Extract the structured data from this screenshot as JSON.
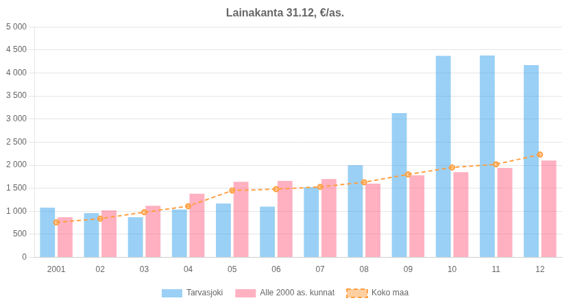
{
  "chart_data": {
    "type": "bar",
    "title": "Lainakanta 31.12, €/as.",
    "categories": [
      "2001",
      "02",
      "03",
      "04",
      "05",
      "06",
      "07",
      "08",
      "09",
      "10",
      "11",
      "12"
    ],
    "series": [
      {
        "name": "Tarvasjoki",
        "type": "bar",
        "values": [
          1080,
          960,
          870,
          1040,
          1170,
          1100,
          1520,
          2000,
          3130,
          4370,
          4380,
          4170
        ]
      },
      {
        "name": "Alle 2000 as. kunnat",
        "type": "bar",
        "values": [
          870,
          1020,
          1120,
          1380,
          1640,
          1660,
          1700,
          1600,
          1780,
          1850,
          1940,
          2100
        ]
      },
      {
        "name": "Koko maa",
        "type": "line",
        "marker": "circle",
        "line_style": "dashed",
        "values": [
          760,
          840,
          980,
          1110,
          1450,
          1480,
          1530,
          1630,
          1800,
          1950,
          2020,
          2230
        ]
      }
    ],
    "ylim": [
      0,
      5000
    ],
    "yticks": [
      0,
      500,
      {
        "value": 1000,
        "label": "1 000"
      },
      {
        "value": 1500,
        "label": "1 500"
      },
      {
        "value": 2000,
        "label": "2 000"
      },
      {
        "value": 2500,
        "label": "2 500"
      },
      {
        "value": 3000,
        "label": "3 000"
      },
      {
        "value": 3500,
        "label": "3 500"
      },
      {
        "value": 4000,
        "label": "4 000"
      },
      {
        "value": 4500,
        "label": "4 500"
      },
      {
        "value": 5000,
        "label": "5 000"
      }
    ],
    "grid": true,
    "legend": "bottom"
  }
}
